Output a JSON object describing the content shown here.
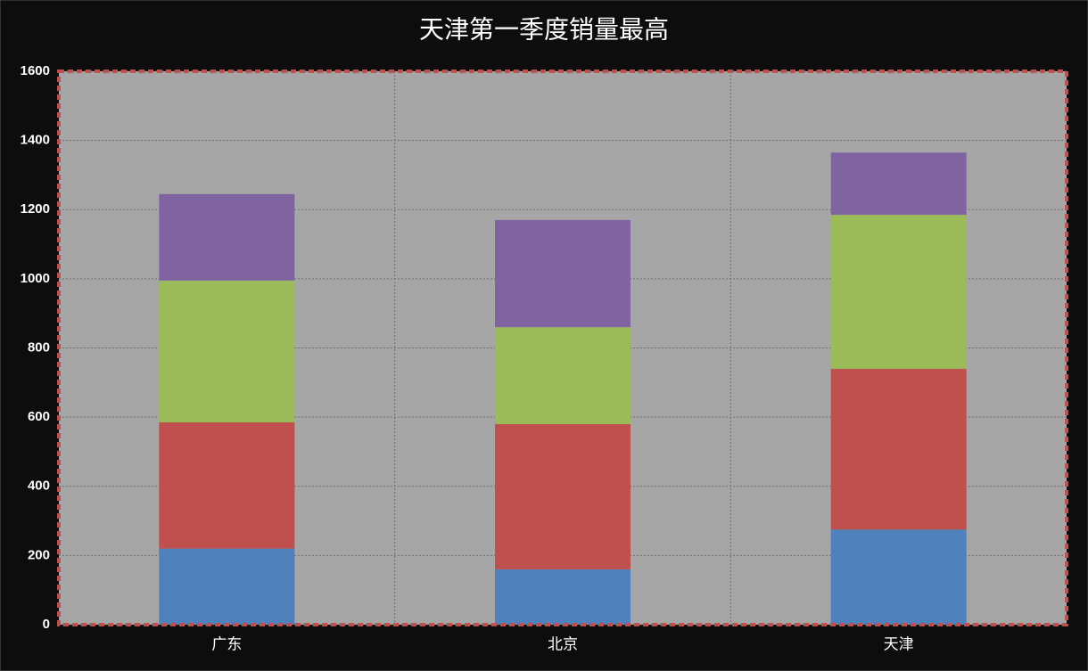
{
  "chart_data": {
    "type": "stacked-bar",
    "title": "天津第一季度销量最高",
    "categories": [
      "广东",
      "北京",
      "天津"
    ],
    "series": [
      {
        "color": "#4f81bd",
        "values": [
          220,
          160,
          275
        ]
      },
      {
        "color": "#c0504d",
        "values": [
          365,
          420,
          465
        ]
      },
      {
        "color": "#9bbb59",
        "values": [
          410,
          280,
          445
        ]
      },
      {
        "color": "#8064a2",
        "values": [
          250,
          310,
          180
        ]
      }
    ],
    "ylim": [
      0,
      1600
    ],
    "yticks": [
      0,
      200,
      400,
      600,
      800,
      1000,
      1200,
      1400,
      1600
    ],
    "grid": true
  }
}
